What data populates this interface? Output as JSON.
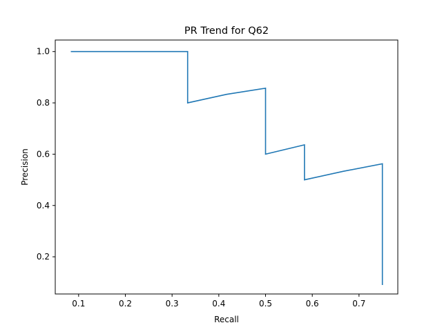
{
  "chart_data": {
    "type": "line",
    "title": "PR Trend for Q62",
    "xlabel": "Recall",
    "ylabel": "Precision",
    "xlim": [
      0.05,
      0.783
    ],
    "ylim": [
      0.055,
      1.045
    ],
    "xticks": [
      0.1,
      0.2,
      0.3,
      0.4,
      0.5,
      0.6,
      0.7
    ],
    "yticks": [
      0.2,
      0.4,
      0.6,
      0.8,
      1.0
    ],
    "xtick_labels": [
      "0.1",
      "0.2",
      "0.3",
      "0.4",
      "0.5",
      "0.6",
      "0.7"
    ],
    "ytick_labels": [
      "0.2",
      "0.4",
      "0.6",
      "0.8",
      "1.0"
    ],
    "grid": false,
    "legend": "none",
    "series": [
      {
        "color": "#1f77b4",
        "x": [
          0.0833,
          0.1667,
          0.25,
          0.3333,
          0.3333,
          0.4167,
          0.5,
          0.5,
          0.5833,
          0.5833,
          0.6667,
          0.75,
          0.75
        ],
        "y": [
          1.0,
          1.0,
          1.0,
          1.0,
          0.8,
          0.8333,
          0.8571,
          0.6,
          0.6364,
          0.5,
          0.5333,
          0.5625,
          0.09
        ]
      }
    ]
  }
}
